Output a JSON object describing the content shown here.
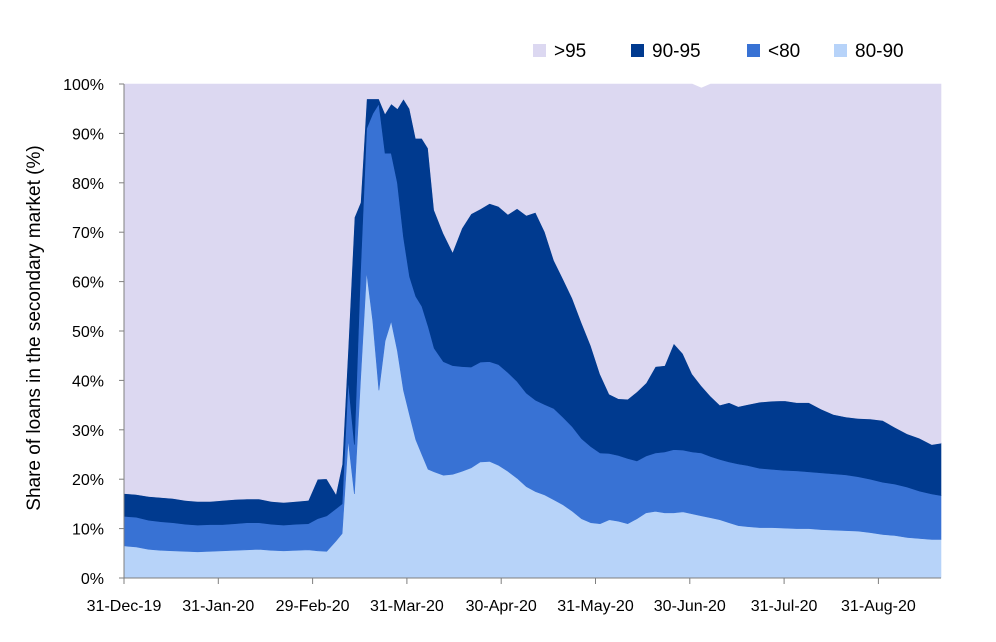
{
  "chart_data": {
    "type": "area",
    "stacked": true,
    "title": "",
    "xlabel": "",
    "ylabel": "Share of loans in the secondary market (%)",
    "ylim": [
      0,
      100
    ],
    "yticks": [
      "0%",
      "10%",
      "20%",
      "30%",
      "40%",
      "50%",
      "60%",
      "70%",
      "80%",
      "90%",
      "100%"
    ],
    "x_tick_labels": [
      "31-Dec-19",
      "31-Jan-20",
      "29-Feb-20",
      "31-Mar-20",
      "30-Apr-20",
      "31-May-20",
      "30-Jun-20",
      "31-Jul-20",
      "31-Aug-20"
    ],
    "legend_position": "top-right",
    "legend": [
      {
        "name": ">95",
        "color": "#dcd8f1"
      },
      {
        "name": "90-95",
        "color": "#003a8f"
      },
      {
        "name": "<80",
        "color": "#3872d4"
      },
      {
        "name": "80-90",
        "color": "#b7d3f9"
      }
    ],
    "x": [
      "2019-12-31",
      "2020-01-04",
      "2020-01-08",
      "2020-01-12",
      "2020-01-16",
      "2020-01-20",
      "2020-01-24",
      "2020-01-28",
      "2020-02-01",
      "2020-02-05",
      "2020-02-09",
      "2020-02-13",
      "2020-02-17",
      "2020-02-21",
      "2020-02-25",
      "2020-02-29",
      "2020-03-03",
      "2020-03-06",
      "2020-03-09",
      "2020-03-11",
      "2020-03-13",
      "2020-03-15",
      "2020-03-17",
      "2020-03-19",
      "2020-03-21",
      "2020-03-23",
      "2020-03-25",
      "2020-03-27",
      "2020-03-29",
      "2020-03-31",
      "2020-04-02",
      "2020-04-04",
      "2020-04-06",
      "2020-04-08",
      "2020-04-10",
      "2020-04-13",
      "2020-04-16",
      "2020-04-19",
      "2020-04-22",
      "2020-04-25",
      "2020-04-28",
      "2020-05-01",
      "2020-05-04",
      "2020-05-07",
      "2020-05-10",
      "2020-05-13",
      "2020-05-16",
      "2020-05-19",
      "2020-05-22",
      "2020-05-25",
      "2020-05-28",
      "2020-05-31",
      "2020-06-03",
      "2020-06-06",
      "2020-06-09",
      "2020-06-12",
      "2020-06-15",
      "2020-06-18",
      "2020-06-21",
      "2020-06-24",
      "2020-06-27",
      "2020-06-30",
      "2020-07-03",
      "2020-07-06",
      "2020-07-09",
      "2020-07-12",
      "2020-07-15",
      "2020-07-18",
      "2020-07-21",
      "2020-07-25",
      "2020-07-29",
      "2020-08-02",
      "2020-08-06",
      "2020-08-10",
      "2020-08-14",
      "2020-08-18",
      "2020-08-22",
      "2020-08-26",
      "2020-08-30",
      "2020-09-03",
      "2020-09-07",
      "2020-09-11",
      "2020-09-15",
      "2020-09-19",
      "2020-09-22"
    ],
    "series": [
      {
        "name": "80-90",
        "color": "#b7d3f9",
        "values": [
          6.5,
          6.3,
          5.8,
          5.6,
          5.5,
          5.4,
          5.3,
          5.4,
          5.5,
          5.6,
          5.7,
          5.8,
          5.6,
          5.5,
          5.6,
          5.7,
          5.5,
          5.4,
          7.5,
          9,
          28,
          17,
          40,
          62,
          52,
          38,
          48,
          52,
          46,
          38,
          33,
          28,
          25,
          22,
          21.5,
          20.8,
          21,
          21.6,
          22.3,
          23.5,
          23.6,
          22.8,
          21.6,
          20.2,
          18.5,
          17.5,
          16.8,
          15.8,
          14.8,
          13.5,
          12,
          11.2,
          11,
          11.8,
          11.5,
          11,
          12,
          13.2,
          13.5,
          13.2,
          13.2,
          13.4,
          13,
          12.6,
          12.2,
          11.8,
          11.2,
          10.6,
          10.4,
          10.2,
          10.2,
          10.1,
          10,
          10,
          9.8,
          9.7,
          9.6,
          9.5,
          9.2,
          8.8,
          8.6,
          8.2,
          8,
          7.8,
          7.8
        ]
      },
      {
        "name": "<80",
        "color": "#3872d4",
        "values": [
          6,
          6,
          5.9,
          5.8,
          5.7,
          5.5,
          5.4,
          5.4,
          5.3,
          5.4,
          5.5,
          5.4,
          5.3,
          5.2,
          5.3,
          5.3,
          6.5,
          7.2,
          6.5,
          6,
          12,
          10,
          22,
          29,
          42,
          58,
          38,
          34,
          34,
          31,
          28,
          29,
          30,
          29,
          25,
          23,
          22,
          21.2,
          20.4,
          20.2,
          20.2,
          20.4,
          20,
          19.6,
          18.9,
          18.5,
          18.3,
          18.5,
          17.7,
          17.1,
          16.2,
          15.4,
          14.3,
          13.4,
          13.3,
          13.2,
          11.7,
          11.5,
          11.8,
          12.3,
          12.8,
          12.5,
          12.5,
          12.7,
          12.4,
          12.2,
          12.3,
          12.5,
          12.4,
          12,
          11.8,
          11.7,
          11.7,
          11.5,
          11.5,
          11.4,
          11.3,
          11,
          10.8,
          10.6,
          10.4,
          10.2,
          9.6,
          9.2,
          8.9
        ]
      },
      {
        "name": "90-95",
        "color": "#003a8f",
        "values": [
          4.6,
          4.6,
          4.8,
          4.9,
          4.9,
          4.8,
          4.8,
          4.7,
          4.9,
          4.9,
          4.8,
          4.8,
          4.6,
          4.6,
          4.6,
          4.7,
          8,
          7.5,
          3,
          8,
          7,
          46,
          14,
          6,
          3,
          1,
          8,
          10,
          15,
          28,
          34,
          32,
          34,
          36,
          28,
          26,
          23,
          28,
          31,
          31,
          32,
          32,
          32,
          35,
          36,
          38,
          35,
          30,
          28,
          26,
          23.5,
          20.4,
          16,
          12,
          11.5,
          12,
          14,
          14.8,
          17.5,
          17.5,
          21.5,
          19.5,
          15.8,
          13.6,
          12.2,
          11,
          12,
          11.6,
          12.3,
          13.4,
          13.8,
          14.1,
          13.8,
          14,
          12.9,
          12,
          11.7,
          11.8,
          12.2,
          12.5,
          11.5,
          10.8,
          10.7,
          10,
          10.6
        ]
      },
      {
        "name": ">95",
        "color": "#dcd8f1",
        "values": [
          82.9,
          83.1,
          83.5,
          83.7,
          83.9,
          84.3,
          84.5,
          84.5,
          84.3,
          84.1,
          84,
          84,
          84.5,
          84.7,
          84.5,
          84.3,
          80,
          79.9,
          83,
          77,
          53,
          27,
          24,
          3,
          3,
          3,
          6,
          4,
          5,
          3,
          5,
          11,
          11,
          13,
          25.5,
          30.2,
          34,
          29.2,
          26.3,
          25.3,
          24.2,
          24.8,
          26.4,
          25.2,
          26.6,
          26,
          29.9,
          35.7,
          39.5,
          43.4,
          48.3,
          53,
          58.7,
          62.8,
          63.7,
          63.8,
          62.3,
          60.5,
          57.2,
          57,
          52.5,
          54.6,
          58.7,
          60.3,
          63.2,
          65,
          64.5,
          65.3,
          64.9,
          64.4,
          64.2,
          64.1,
          64.5,
          64.5,
          65.8,
          66.9,
          67.4,
          67.7,
          67.8,
          68.1,
          69.5,
          70.8,
          71.7,
          73,
          72.7
        ]
      }
    ]
  }
}
